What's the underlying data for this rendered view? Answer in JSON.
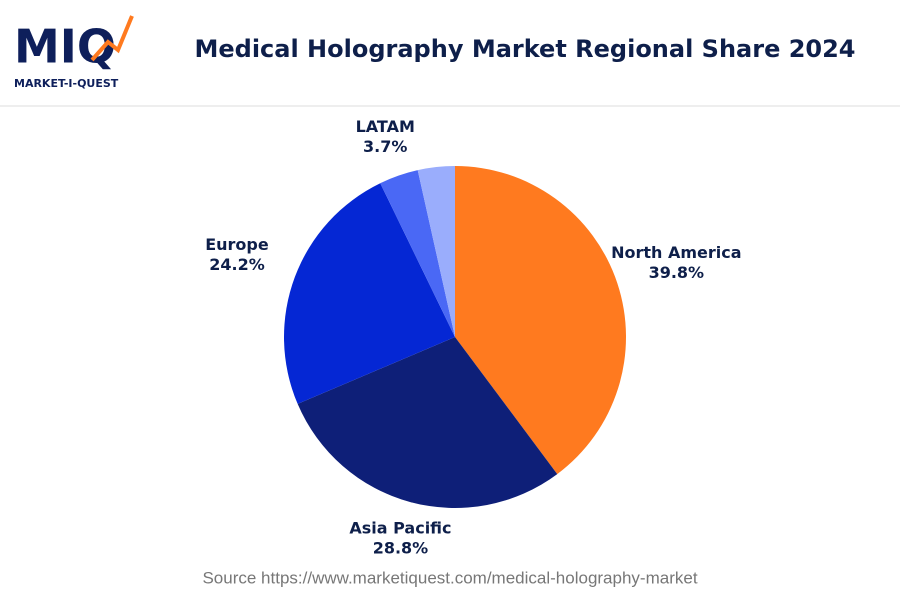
{
  "logo": {
    "mark": "MIQ",
    "name": "MARKET-I-QUEST"
  },
  "chart_data": {
    "type": "pie",
    "title": "Medical Holography Market Regional Share 2024",
    "categories": [
      "North America",
      "Asia Pacific",
      "Europe",
      "LATAM",
      null
    ],
    "values": [
      39.8,
      28.8,
      24.2,
      3.7,
      3.5
    ],
    "value_labels": [
      "39.8%",
      "28.8%",
      "24.2%",
      "3.7%",
      null
    ],
    "colors": [
      "#ff7a1f",
      "#0e1f78",
      "#0527d4",
      "#4a68f5",
      "#9aadfc"
    ],
    "source": "Source https://www.marketiquest.com/medical-holography-market"
  }
}
